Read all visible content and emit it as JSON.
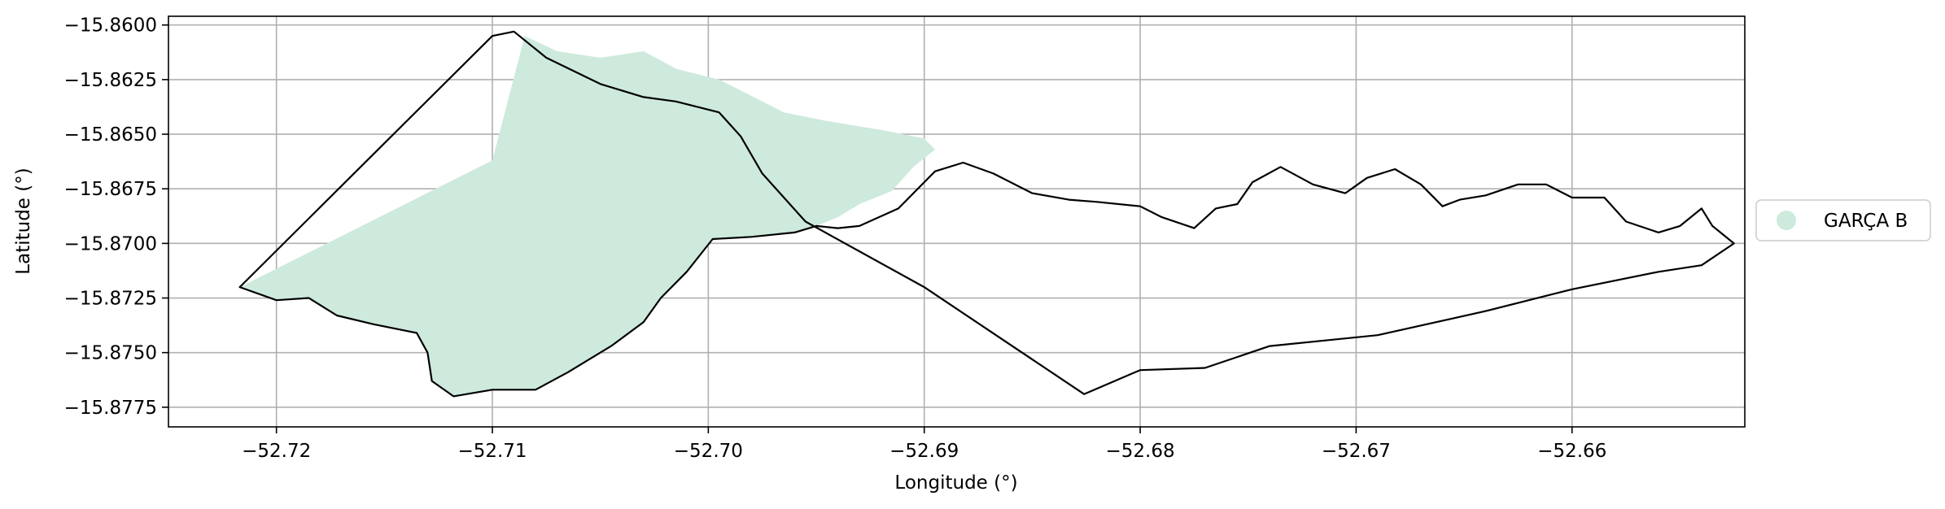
{
  "chart_data": {
    "type": "map",
    "xlabel": "Longitude (°)",
    "ylabel": "Latitude (°)",
    "xlim": [
      -52.725,
      -52.652
    ],
    "ylim": [
      -15.8784,
      -15.8596
    ],
    "xticks": [
      -52.72,
      -52.71,
      -52.7,
      -52.69,
      -52.68,
      -52.67,
      -52.66
    ],
    "xtick_labels": [
      "−52.72",
      "−52.71",
      "−52.70",
      "−52.69",
      "−52.68",
      "−52.67",
      "−52.66"
    ],
    "yticks": [
      -15.86,
      -15.8625,
      -15.865,
      -15.8675,
      -15.87,
      -15.8725,
      -15.875,
      -15.8775
    ],
    "ytick_labels": [
      "−15.8600",
      "−15.8625",
      "−15.8650",
      "−15.8675",
      "−15.8700",
      "−15.8725",
      "−15.8750",
      "−15.8775"
    ],
    "grid": true,
    "legend_position": "right",
    "legend": [
      {
        "label": "GARÇA B",
        "color": "#cdeadd"
      }
    ],
    "fill_color": "#cdeadd",
    "outline_color": "#000000",
    "outline_path": [
      [
        -52.7217,
        -15.872
      ],
      [
        -52.72,
        -15.8726
      ],
      [
        -52.7185,
        -15.8725
      ],
      [
        -52.7172,
        -15.8733
      ],
      [
        -52.7155,
        -15.8737
      ],
      [
        -52.7135,
        -15.8741
      ],
      [
        -52.713,
        -15.875
      ],
      [
        -52.7128,
        -15.8763
      ],
      [
        -52.7118,
        -15.877
      ],
      [
        -52.71,
        -15.8767
      ],
      [
        -52.708,
        -15.8767
      ],
      [
        -52.7065,
        -15.8759
      ],
      [
        -52.7045,
        -15.8747
      ],
      [
        -52.703,
        -15.8736
      ],
      [
        -52.7022,
        -15.8725
      ],
      [
        -52.701,
        -15.8713
      ],
      [
        -52.6998,
        -15.8698
      ],
      [
        -52.698,
        -15.8697
      ],
      [
        -52.696,
        -15.8695
      ],
      [
        -52.695,
        -15.8692
      ],
      [
        -52.694,
        -15.8693
      ],
      [
        -52.693,
        -15.8692
      ],
      [
        -52.6912,
        -15.8684
      ],
      [
        -52.69,
        -15.8672
      ],
      [
        -52.6895,
        -15.8667
      ],
      [
        -52.6882,
        -15.8663
      ],
      [
        -52.6868,
        -15.8668
      ],
      [
        -52.685,
        -15.8677
      ],
      [
        -52.6833,
        -15.868
      ],
      [
        -52.682,
        -15.8681
      ],
      [
        -52.68,
        -15.8683
      ],
      [
        -52.679,
        -15.8688
      ],
      [
        -52.6775,
        -15.8693
      ],
      [
        -52.6765,
        -15.8684
      ],
      [
        -52.6755,
        -15.8682
      ],
      [
        -52.6748,
        -15.8672
      ],
      [
        -52.6735,
        -15.8665
      ],
      [
        -52.672,
        -15.8673
      ],
      [
        -52.6705,
        -15.8677
      ],
      [
        -52.6695,
        -15.867
      ],
      [
        -52.6682,
        -15.8666
      ],
      [
        -52.667,
        -15.8673
      ],
      [
        -52.666,
        -15.8683
      ],
      [
        -52.6652,
        -15.868
      ],
      [
        -52.664,
        -15.8678
      ],
      [
        -52.6625,
        -15.8673
      ],
      [
        -52.6612,
        -15.8673
      ],
      [
        -52.66,
        -15.8679
      ],
      [
        -52.6585,
        -15.8679
      ],
      [
        -52.6575,
        -15.869
      ],
      [
        -52.656,
        -15.8695
      ],
      [
        -52.655,
        -15.8692
      ],
      [
        -52.654,
        -15.8684
      ],
      [
        -52.6535,
        -15.8692
      ],
      [
        -52.6525,
        -15.87
      ],
      [
        -52.654,
        -15.871
      ],
      [
        -52.656,
        -15.8713
      ],
      [
        -52.66,
        -15.8721
      ],
      [
        -52.664,
        -15.8731
      ],
      [
        -52.669,
        -15.8742
      ],
      [
        -52.674,
        -15.8747
      ],
      [
        -52.677,
        -15.8757
      ],
      [
        -52.68,
        -15.8758
      ],
      [
        -52.6826,
        -15.8769
      ],
      [
        -52.69,
        -15.872
      ],
      [
        -52.6955,
        -15.869
      ],
      [
        -52.6975,
        -15.8668
      ],
      [
        -52.6985,
        -15.8651
      ],
      [
        -52.6995,
        -15.864
      ],
      [
        -52.7015,
        -15.8635
      ],
      [
        -52.703,
        -15.8633
      ],
      [
        -52.705,
        -15.8627
      ],
      [
        -52.7075,
        -15.8615
      ],
      [
        -52.709,
        -15.8603
      ],
      [
        -52.71,
        -15.8605
      ],
      [
        -52.7217,
        -15.872
      ]
    ],
    "fill_path": [
      [
        -52.7217,
        -15.872
      ],
      [
        -52.72,
        -15.8726
      ],
      [
        -52.7185,
        -15.8725
      ],
      [
        -52.7172,
        -15.8733
      ],
      [
        -52.7155,
        -15.8737
      ],
      [
        -52.7135,
        -15.8741
      ],
      [
        -52.713,
        -15.875
      ],
      [
        -52.7128,
        -15.8763
      ],
      [
        -52.7118,
        -15.877
      ],
      [
        -52.71,
        -15.8767
      ],
      [
        -52.708,
        -15.8767
      ],
      [
        -52.7065,
        -15.8759
      ],
      [
        -52.7045,
        -15.8747
      ],
      [
        -52.703,
        -15.8736
      ],
      [
        -52.7022,
        -15.8725
      ],
      [
        -52.701,
        -15.8713
      ],
      [
        -52.6998,
        -15.8698
      ],
      [
        -52.698,
        -15.8697
      ],
      [
        -52.696,
        -15.8695
      ],
      [
        -52.695,
        -15.8692
      ],
      [
        -52.694,
        -15.8688
      ],
      [
        -52.693,
        -15.8682
      ],
      [
        -52.6915,
        -15.8676
      ],
      [
        -52.6905,
        -15.8665
      ],
      [
        -52.6895,
        -15.8657
      ],
      [
        -52.69,
        -15.8652
      ],
      [
        -52.692,
        -15.8648
      ],
      [
        -52.6945,
        -15.8644
      ],
      [
        -52.6965,
        -15.864
      ],
      [
        -52.6985,
        -15.863
      ],
      [
        -52.6995,
        -15.8625
      ],
      [
        -52.7015,
        -15.862
      ],
      [
        -52.703,
        -15.8612
      ],
      [
        -52.705,
        -15.8615
      ],
      [
        -52.707,
        -15.8612
      ],
      [
        -52.7085,
        -15.8605
      ],
      [
        -52.71,
        -15.8662
      ],
      [
        -52.7217,
        -15.872
      ]
    ]
  }
}
